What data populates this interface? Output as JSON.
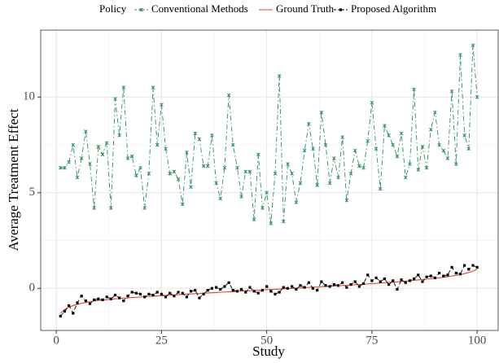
{
  "chart_data": {
    "type": "line",
    "x_label": "Study",
    "y_label": "Average Treatment Effect",
    "legend_title": "Policy",
    "x": [
      1,
      2,
      3,
      4,
      5,
      6,
      7,
      8,
      9,
      10,
      11,
      12,
      13,
      14,
      15,
      16,
      17,
      18,
      19,
      20,
      21,
      22,
      23,
      24,
      25,
      26,
      27,
      28,
      29,
      30,
      31,
      32,
      33,
      34,
      35,
      36,
      37,
      38,
      39,
      40,
      41,
      42,
      43,
      44,
      45,
      46,
      47,
      48,
      49,
      50,
      51,
      52,
      53,
      54,
      55,
      56,
      57,
      58,
      59,
      60,
      61,
      62,
      63,
      64,
      65,
      66,
      67,
      68,
      69,
      70,
      71,
      72,
      73,
      74,
      75,
      76,
      77,
      78,
      79,
      80,
      81,
      82,
      83,
      84,
      85,
      86,
      87,
      88,
      89,
      90,
      91,
      92,
      93,
      94,
      95,
      96,
      97,
      98,
      99,
      100
    ],
    "xlim": [
      -3.7,
      105
    ],
    "xticks": [
      0,
      25,
      50,
      75,
      100
    ],
    "ylim": [
      -2.2,
      13.5
    ],
    "yticks": [
      0,
      5,
      10
    ],
    "grid": true,
    "series": [
      {
        "name": "Conventional Methods",
        "color": "#2a9158",
        "values": [
          6.3,
          6.3,
          6.6,
          7.5,
          5.8,
          6.8,
          8.2,
          6.5,
          4.2,
          7.4,
          7.0,
          7.6,
          4.2,
          9.9,
          8.0,
          10.5,
          6.8,
          6.9,
          5.9,
          6.3,
          4.2,
          6.0,
          10.5,
          7.5,
          9.6,
          7.3,
          6.0,
          6.1,
          5.7,
          4.4,
          7.1,
          5.3,
          8.1,
          7.8,
          6.4,
          6.4,
          8.0,
          5.5,
          4.7,
          6.3,
          10.1,
          7.5,
          6.3,
          4.8,
          6.1,
          6.1,
          3.6,
          7.0,
          4.2,
          5.0,
          3.4,
          6.0,
          11.1,
          3.5,
          6.5,
          6.0,
          4.5,
          5.5,
          7.2,
          8.6,
          7.3,
          5.4,
          9.2,
          7.5,
          5.5,
          6.8,
          5.8,
          7.9,
          4.6,
          6.0,
          7.2,
          6.4,
          6.3,
          7.7,
          9.7,
          7.3,
          5.2,
          8.5,
          8.0,
          7.5,
          6.9,
          8.1,
          5.8,
          6.5,
          10.4,
          6.2,
          7.4,
          6.3,
          8.3,
          9.2,
          7.5,
          7.2,
          6.8,
          10.3,
          6.5,
          12.2,
          8.0,
          7.3,
          12.7,
          10.0
        ]
      },
      {
        "name": "Ground Truth",
        "color": "#e0413a",
        "values": [
          -1.3,
          -1.1,
          -0.98,
          -0.9,
          -0.84,
          -0.78,
          -0.74,
          -0.7,
          -0.66,
          -0.63,
          -0.61,
          -0.59,
          -0.57,
          -0.55,
          -0.53,
          -0.51,
          -0.5,
          -0.48,
          -0.47,
          -0.45,
          -0.44,
          -0.42,
          -0.41,
          -0.4,
          -0.38,
          -0.37,
          -0.36,
          -0.34,
          -0.33,
          -0.32,
          -0.3,
          -0.29,
          -0.28,
          -0.27,
          -0.25,
          -0.24,
          -0.23,
          -0.22,
          -0.2,
          -0.19,
          -0.18,
          -0.17,
          -0.16,
          -0.14,
          -0.13,
          -0.12,
          -0.11,
          -0.1,
          -0.08,
          -0.07,
          -0.06,
          -0.05,
          -0.04,
          -0.02,
          -0.01,
          0.0,
          0.01,
          0.02,
          0.04,
          0.05,
          0.06,
          0.07,
          0.09,
          0.1,
          0.11,
          0.12,
          0.14,
          0.15,
          0.16,
          0.18,
          0.19,
          0.2,
          0.22,
          0.23,
          0.25,
          0.26,
          0.28,
          0.29,
          0.31,
          0.33,
          0.34,
          0.36,
          0.38,
          0.4,
          0.42,
          0.44,
          0.46,
          0.48,
          0.5,
          0.53,
          0.55,
          0.58,
          0.61,
          0.64,
          0.68,
          0.72,
          0.77,
          0.83,
          0.9,
          1.0
        ]
      },
      {
        "name": "Proposed Algorithm",
        "color": "#000000",
        "values": [
          -1.45,
          -1.2,
          -0.9,
          -1.3,
          -0.75,
          -0.4,
          -0.65,
          -0.8,
          -0.6,
          -0.55,
          -0.6,
          -0.45,
          -0.55,
          -0.35,
          -0.5,
          -0.65,
          -0.4,
          -0.2,
          -0.25,
          -0.3,
          -0.45,
          -0.3,
          -0.35,
          -0.2,
          -0.3,
          -0.45,
          -0.25,
          -0.4,
          -0.2,
          -0.25,
          -0.45,
          -0.15,
          -0.1,
          -0.5,
          -0.3,
          -0.1,
          0.0,
          0.05,
          -0.05,
          0.1,
          0.3,
          -0.1,
          -0.15,
          -0.05,
          -0.2,
          0.05,
          -0.15,
          -0.25,
          -0.1,
          0.1,
          -0.15,
          -0.3,
          -0.2,
          0.05,
          0.0,
          0.1,
          -0.05,
          0.15,
          0.05,
          0.3,
          0.0,
          -0.1,
          0.35,
          0.15,
          0.1,
          0.2,
          0.15,
          0.3,
          0.05,
          0.2,
          0.35,
          0.1,
          0.25,
          0.7,
          0.4,
          0.55,
          0.35,
          0.5,
          0.2,
          0.4,
          -0.05,
          0.45,
          0.3,
          0.4,
          0.5,
          0.7,
          0.35,
          0.6,
          0.65,
          0.55,
          0.8,
          0.65,
          0.7,
          1.1,
          0.8,
          0.75,
          1.2,
          1.0,
          1.2,
          1.1
        ]
      }
    ]
  }
}
